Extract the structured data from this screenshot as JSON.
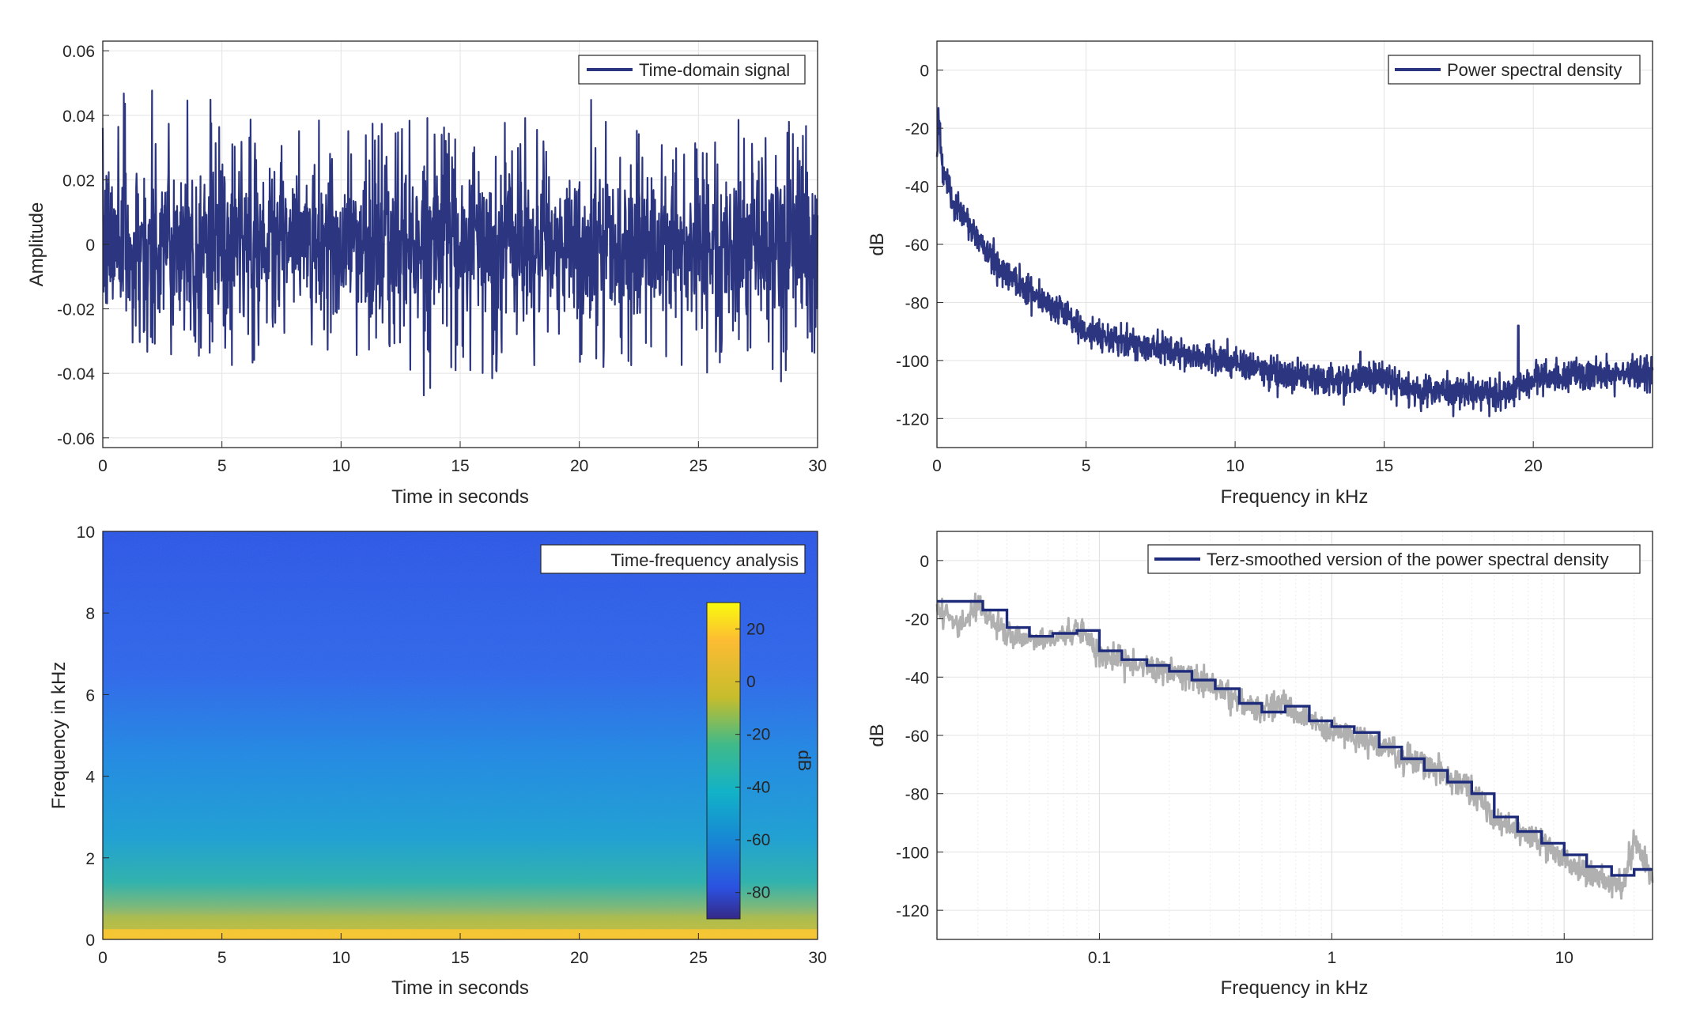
{
  "colors": {
    "signal": "#2c3580",
    "smoothed": "#1e2b7a",
    "raw_spectrum": "#b0b0b0",
    "grid": "#e3e3e3",
    "axes": "#262626",
    "spectrogram_background": "#2f6fe6",
    "spectrogram_low_band": "#cfc31a",
    "colorbar_top": "#f9fb0e",
    "colorbar_bottom": "#352a87"
  },
  "chart_data": [
    {
      "id": "time_domain",
      "type": "line",
      "legend": "Time-domain signal",
      "legend_location": "top-right",
      "grid": true,
      "xlabel": "Time in seconds",
      "ylabel": "Amplitude",
      "xlim": [
        0,
        30
      ],
      "ylim": [
        -0.063,
        0.063
      ],
      "x_ticks": [
        0,
        5,
        10,
        15,
        20,
        25,
        30
      ],
      "x_tick_labels": [
        "0",
        "5",
        "10",
        "15",
        "20",
        "25",
        "30"
      ],
      "y_ticks": [
        -0.06,
        -0.04,
        -0.02,
        0,
        0.02,
        0.04,
        0.06
      ],
      "y_tick_labels": [
        "-0.06",
        "-0.04",
        "-0.02",
        "0",
        "0.02",
        "0.04",
        "0.06"
      ],
      "signal": {
        "description": "broadband noise, bulk within about ±0.03, peaks up to about ±0.05",
        "x": [
          0,
          1.5,
          3,
          4.5,
          6,
          7.5,
          9,
          10.5,
          12,
          13.5,
          15,
          16.5,
          18,
          19.5,
          21,
          22.5,
          24,
          25.5,
          27,
          28.5,
          30
        ],
        "y_max": [
          0.043,
          0.052,
          0.044,
          0.046,
          0.043,
          0.045,
          0.039,
          0.043,
          0.036,
          0.04,
          0.034,
          0.04,
          0.039,
          0.044,
          0.046,
          0.042,
          0.038,
          0.037,
          0.039,
          0.038,
          0.038
        ],
        "y_min": [
          -0.04,
          -0.039,
          -0.035,
          -0.04,
          -0.039,
          -0.036,
          -0.038,
          -0.034,
          -0.037,
          -0.047,
          -0.038,
          -0.045,
          -0.038,
          -0.036,
          -0.041,
          -0.038,
          -0.039,
          -0.04,
          -0.042,
          -0.043,
          -0.04
        ],
        "rms": 0.013
      }
    },
    {
      "id": "psd",
      "type": "line",
      "legend": "Power spectral density",
      "legend_location": "top-right",
      "grid": true,
      "xlabel": "Frequency in kHz",
      "ylabel": "dB",
      "xlim": [
        0,
        24
      ],
      "ylim": [
        -130,
        10
      ],
      "x_ticks": [
        0,
        5,
        10,
        15,
        20
      ],
      "x_tick_labels": [
        "0",
        "5",
        "10",
        "15",
        "20"
      ],
      "y_ticks": [
        -120,
        -100,
        -80,
        -60,
        -40,
        -20,
        0
      ],
      "y_tick_labels": [
        "-120",
        "-100",
        "-80",
        "-60",
        "-40",
        "-20",
        "0"
      ],
      "series": [
        {
          "name": "Power spectral density",
          "x": [
            0,
            0.05,
            0.2,
            0.5,
            1,
            1.5,
            2,
            3,
            4,
            5,
            6,
            7,
            8,
            9,
            10,
            11,
            12,
            13,
            14,
            15,
            16,
            17,
            18,
            19,
            20,
            21,
            22,
            23,
            24
          ],
          "y": [
            -30,
            -15,
            -35,
            -45,
            -52,
            -60,
            -67,
            -75,
            -82,
            -90,
            -93,
            -95,
            -97,
            -99,
            -101,
            -103,
            -106,
            -107,
            -106,
            -106,
            -110,
            -111,
            -111,
            -112,
            -106,
            -105,
            -105,
            -105,
            -104
          ]
        }
      ],
      "peaks": [
        {
          "x": 19.5,
          "y": -88
        },
        {
          "x": 14.2,
          "y": -97
        },
        {
          "x": 12.1,
          "y": -99
        }
      ]
    },
    {
      "id": "spectrogram",
      "type": "heatmap",
      "legend": "Time-frequency analysis",
      "legend_location": "top-right",
      "xlabel": "Time in seconds",
      "ylabel": "Frequency in kHz",
      "xlim": [
        0,
        30
      ],
      "ylim": [
        0,
        10
      ],
      "x_ticks": [
        0,
        5,
        10,
        15,
        20,
        25,
        30
      ],
      "x_tick_labels": [
        "0",
        "5",
        "10",
        "15",
        "20",
        "25",
        "30"
      ],
      "y_ticks": [
        0,
        2,
        4,
        6,
        8,
        10
      ],
      "y_tick_labels": [
        "0",
        "2",
        "4",
        "6",
        "8",
        "10"
      ],
      "frequency_profile_khz": [
        0,
        0.2,
        0.5,
        1,
        1.5,
        2,
        3,
        4,
        5,
        6,
        7,
        8,
        9,
        10
      ],
      "level_db_profile": [
        15,
        0,
        -15,
        -30,
        -38,
        -42,
        -48,
        -52,
        -56,
        -58,
        -62,
        -65,
        -67,
        -68
      ],
      "colorbar": {
        "label": "dB",
        "limits": [
          -90,
          30
        ],
        "ticks": [
          20,
          0,
          -20,
          -40,
          -60,
          -80
        ],
        "tick_labels": [
          "20",
          "0",
          "-20",
          "-40",
          "-60",
          "-80"
        ]
      }
    },
    {
      "id": "terz_psd",
      "type": "line",
      "legend": "Terz-smoothed version of the power spectral density",
      "legend_location": "top-right",
      "grid": true,
      "x_scale": "log",
      "xlabel": "Frequency in kHz",
      "ylabel": "dB",
      "xlim": [
        0.02,
        24
      ],
      "ylim": [
        -130,
        10
      ],
      "x_ticks": [
        0.1,
        1,
        10
      ],
      "x_tick_labels": [
        "0.1",
        "1",
        "10"
      ],
      "y_ticks": [
        -120,
        -100,
        -80,
        -60,
        -40,
        -20,
        0
      ],
      "y_tick_labels": [
        "-120",
        "-100",
        "-80",
        "-60",
        "-40",
        "-20",
        "0"
      ],
      "series": [
        {
          "name": "Terz-smoothed version of the power spectral density",
          "band_edges": [
            0.02,
            0.0315,
            0.04,
            0.05,
            0.063,
            0.08,
            0.1,
            0.125,
            0.16,
            0.2,
            0.25,
            0.315,
            0.4,
            0.5,
            0.63,
            0.8,
            1,
            1.25,
            1.6,
            2,
            2.5,
            3.15,
            4,
            5,
            6.3,
            8,
            10,
            12.5,
            16,
            20,
            24
          ],
          "levels": [
            -14,
            -17,
            -23,
            -26,
            -25,
            -24,
            -31,
            -34,
            -36,
            -38,
            -41,
            -44,
            -49,
            -52,
            -50,
            -55,
            -57,
            -59,
            -64,
            -68,
            -72,
            -76,
            -80,
            -88,
            -93,
            -97,
            -101,
            -105,
            -108,
            -106
          ]
        },
        {
          "name": "",
          "x": [
            0.02,
            0.025,
            0.03,
            0.035,
            0.04,
            0.05,
            0.07,
            0.085,
            0.1,
            0.15,
            0.2,
            0.3,
            0.4,
            0.5,
            0.6,
            0.7,
            1,
            1.5,
            2,
            3,
            4,
            5,
            7,
            10,
            12,
            15,
            18,
            20,
            24
          ],
          "y": [
            -16,
            -22,
            -16,
            -20,
            -26,
            -27,
            -26,
            -23,
            -33,
            -35,
            -38,
            -42,
            -48,
            -52,
            -48,
            -53,
            -58,
            -62,
            -67,
            -73,
            -79,
            -89,
            -94,
            -102,
            -107,
            -110,
            -112,
            -95,
            -110
          ]
        }
      ]
    }
  ]
}
